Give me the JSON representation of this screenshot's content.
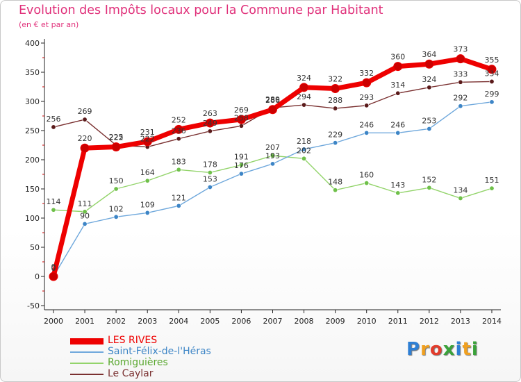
{
  "page": {
    "title": "Evolution des Impôts locaux pour la Commune par Habitant",
    "subtitle": "(en € et par an)"
  },
  "logo": {
    "text": "Proxiti",
    "colors": [
      "#2e7fd4",
      "#f0a020",
      "#e23c2c",
      "#3aa23a",
      "#2e7fd4",
      "#f0a020",
      "#3aa23a"
    ]
  },
  "colors": {
    "title": "#e0307a",
    "axis": "#222222",
    "minor_tick": "#cc0000"
  },
  "chart_data": {
    "type": "line",
    "title": "Evolution des Impôts locaux pour la Commune par Habitant",
    "subtitle": "(en € et par an)",
    "xlabel": "",
    "ylabel": "",
    "x": [
      "2000",
      "2001",
      "2002",
      "2003",
      "2004",
      "2005",
      "2006",
      "2007",
      "2008",
      "2009",
      "2010",
      "2011",
      "2012",
      "2013",
      "2014"
    ],
    "y_ticks": [
      "-50",
      "0",
      "50",
      "100",
      "150",
      "200",
      "250",
      "300",
      "350",
      "400"
    ],
    "ylim": [
      -50,
      400
    ],
    "grid": false,
    "legend_position": "bottom-left",
    "series": [
      {
        "name": "LES RIVES",
        "color": "#ee0000",
        "marker_color": "#cc0000",
        "style": "thick",
        "values": [
          0,
          220,
          222,
          231,
          252,
          263,
          269,
          286,
          324,
          322,
          332,
          360,
          364,
          373,
          355
        ],
        "labels": [
          "0",
          "220",
          "222",
          "231",
          "252",
          "263",
          "269",
          "286",
          "324",
          "322",
          "332",
          "360",
          "364",
          "373",
          "355"
        ]
      },
      {
        "name": "Saint-Félix-de-l'Héras",
        "color": "#6fa8dc",
        "marker_color": "#3d85c6",
        "style": "thin",
        "values": [
          0,
          90,
          102,
          109,
          121,
          153,
          176,
          193,
          218,
          229,
          246,
          246,
          253,
          292,
          299
        ],
        "labels": [
          "0",
          "90",
          "102",
          "109",
          "121",
          "153",
          "176",
          "193",
          "218",
          "229",
          "246",
          "246",
          "253",
          "292",
          "299"
        ]
      },
      {
        "name": "Romiguières",
        "color": "#93d46b",
        "marker_color": "#6fc04a",
        "style": "thin",
        "values": [
          114,
          111,
          150,
          164,
          183,
          178,
          191,
          207,
          202,
          148,
          160,
          143,
          152,
          134,
          151
        ],
        "labels": [
          "114",
          "111",
          "150",
          "164",
          "183",
          "178",
          "191",
          "207",
          "202",
          "148",
          "160",
          "143",
          "152",
          "134",
          "151"
        ]
      },
      {
        "name": "Le Caylar",
        "color": "#7a3030",
        "marker_color": "#5a1a1a",
        "style": "thin",
        "values": [
          256,
          269,
          225,
          222,
          236,
          249,
          258,
          289,
          294,
          288,
          293,
          314,
          324,
          333,
          334
        ],
        "labels": [
          "256",
          "269",
          "225",
          "222",
          "236",
          "249",
          "258",
          "289",
          "294",
          "288",
          "293",
          "314",
          "324",
          "333",
          "334"
        ]
      }
    ]
  }
}
